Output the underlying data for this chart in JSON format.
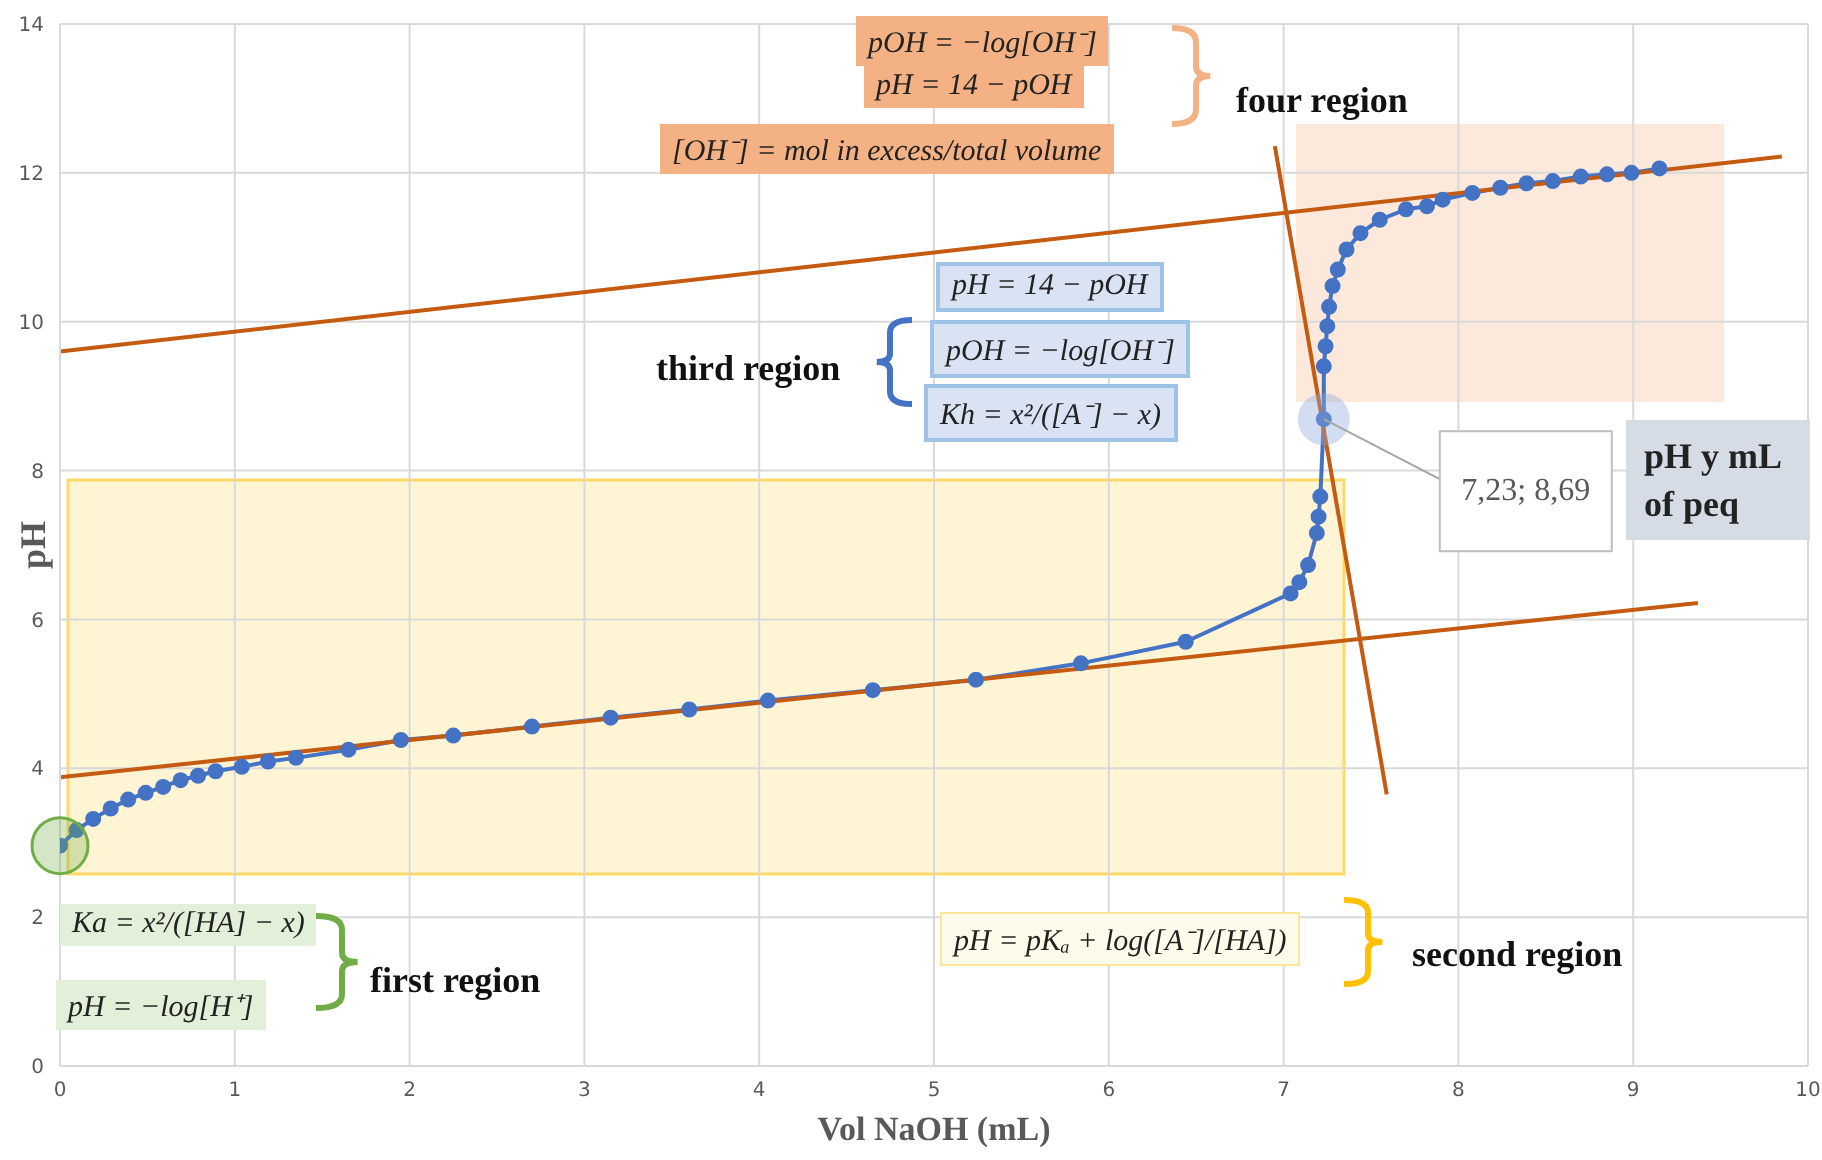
{
  "chart_data": {
    "type": "line",
    "xlabel": "Vol NaOH (mL)",
    "ylabel": "pH",
    "xlim": [
      0,
      10
    ],
    "xticks": [
      0,
      1,
      2,
      3,
      4,
      5,
      6,
      7,
      8,
      9,
      10
    ],
    "ylim": [
      0,
      14
    ],
    "yticks": [
      0,
      2,
      4,
      6,
      8,
      10,
      12,
      14
    ],
    "grid": true,
    "marker": "circle",
    "series": [
      {
        "color": "#4472c4",
        "x": [
          0,
          0.095,
          0.19,
          0.29,
          0.39,
          0.49,
          0.59,
          0.69,
          0.79,
          0.89,
          1.04,
          1.19,
          1.35,
          1.65,
          1.95,
          2.25,
          2.7,
          3.15,
          3.6,
          4.05,
          4.65,
          5.24,
          5.84,
          6.44,
          7.04,
          7.09,
          7.14,
          7.19,
          7.2,
          7.21,
          7.23,
          7.23,
          7.24,
          7.25,
          7.26,
          7.28,
          7.31,
          7.36,
          7.44,
          7.55,
          7.7,
          7.82,
          7.91,
          8.08,
          8.24,
          8.39,
          8.54,
          8.7,
          8.85,
          8.99,
          9.15
        ],
        "values": [
          2.96,
          3.17,
          3.32,
          3.46,
          3.58,
          3.67,
          3.75,
          3.84,
          3.9,
          3.96,
          4.02,
          4.09,
          4.14,
          4.25,
          4.38,
          4.44,
          4.56,
          4.68,
          4.79,
          4.91,
          5.05,
          5.19,
          5.41,
          5.7,
          6.35,
          6.5,
          6.73,
          7.16,
          7.38,
          7.65,
          8.69,
          9.4,
          9.67,
          9.94,
          10.2,
          10.48,
          10.7,
          10.97,
          11.19,
          11.37,
          11.51,
          11.55,
          11.64,
          11.73,
          11.8,
          11.86,
          11.89,
          11.95,
          11.98,
          12.0,
          12.06
        ]
      },
      {
        "color": "#c55a11",
        "marker": "none",
        "x": [
          0,
          9.37
        ],
        "values": [
          3.88,
          6.22
        ]
      },
      {
        "color": "#c55a11",
        "marker": "none",
        "x": [
          0,
          9.85
        ],
        "values": [
          9.6,
          12.22
        ]
      },
      {
        "color": "#c55a11",
        "marker": "none",
        "x": [
          6.95,
          7.59
        ],
        "values": [
          12.36,
          3.65
        ]
      }
    ],
    "annotations": [
      "pOH = −log[OH⁻]",
      "pH = 14 − pOH",
      "[OH⁻] = mol in excess/total volume",
      "four region",
      "pH = 14 − pOH",
      "pOH = −log[OH⁻]",
      "Kh = x²/([A⁻] − x)",
      "third region",
      {
        "text": "7,23; 8,69",
        "x": 7.23,
        "y": 8.69
      },
      "pH y mL of peq",
      "Ka = x²/([HA] − x)",
      "pH = −log[H⁺]",
      "first  region",
      "pH = pKₐ + log([A⁻]/[HA])",
      "second region"
    ]
  }
}
